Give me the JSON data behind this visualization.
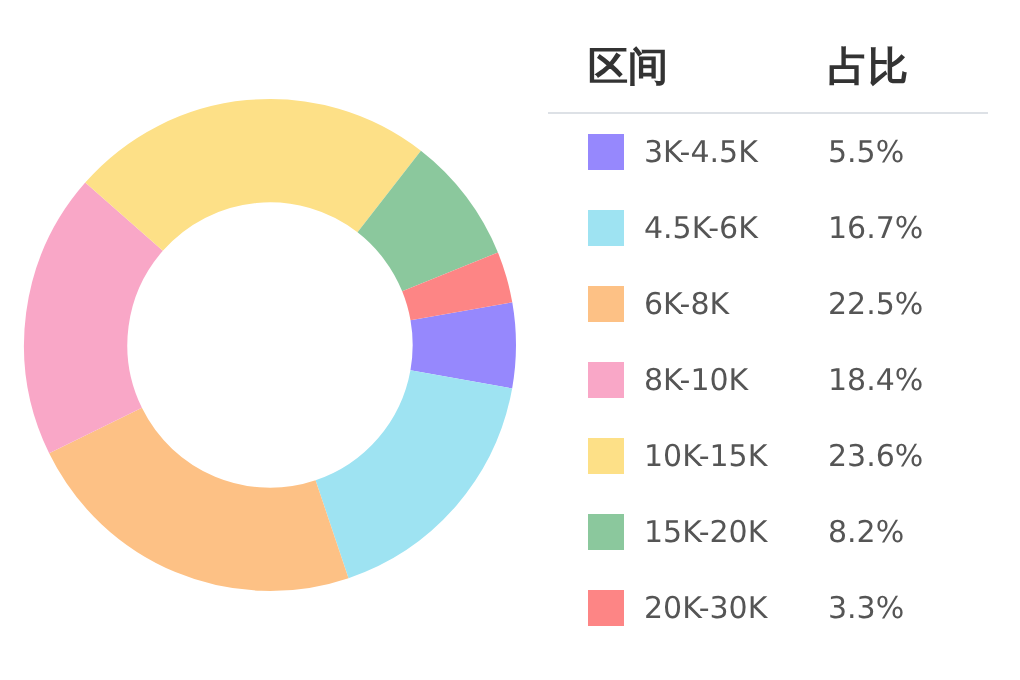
{
  "chart_data": {
    "type": "donut",
    "categories": [
      "3K-4.5K",
      "4.5K-6K",
      "6K-8K",
      "8K-10K",
      "10K-15K",
      "15K-20K",
      "20K-30K"
    ],
    "values": [
      5.5,
      16.7,
      22.5,
      18.4,
      23.6,
      8.2,
      3.3
    ],
    "value_labels": [
      "5.5%",
      "16.7%",
      "22.5%",
      "18.4%",
      "23.6%",
      "8.2%",
      "3.3%"
    ],
    "colors": [
      "#9688fd",
      "#9ee3f2",
      "#fdc185",
      "#f9a7c7",
      "#fde087",
      "#8bc89d",
      "#fd8585"
    ],
    "annotations": [
      "区间",
      "占比"
    ],
    "legend": "right"
  }
}
